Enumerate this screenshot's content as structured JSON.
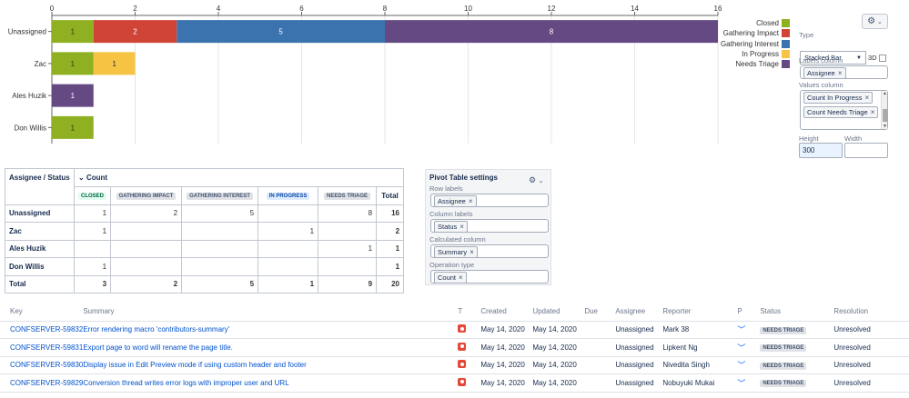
{
  "chart_data": {
    "type": "bar",
    "orientation": "horizontal",
    "stacked": true,
    "categories": [
      "Unassigned",
      "Zac",
      "Ales Huzik",
      "Don Willis"
    ],
    "series": [
      {
        "name": "Closed",
        "color": "#8eb021",
        "values": [
          1,
          1,
          0,
          1
        ]
      },
      {
        "name": "Gathering Impact",
        "color": "#d04437",
        "values": [
          2,
          0,
          0,
          0
        ]
      },
      {
        "name": "Gathering Interest",
        "color": "#3b73af",
        "values": [
          5,
          0,
          0,
          0
        ]
      },
      {
        "name": "In Progress",
        "color": "#f6c342",
        "values": [
          0,
          1,
          0,
          0
        ]
      },
      {
        "name": "Needs Triage",
        "color": "#654982",
        "values": [
          8,
          0,
          1,
          0
        ]
      }
    ],
    "xlim": [
      0,
      16
    ],
    "xticks": [
      0,
      2,
      4,
      6,
      8,
      10,
      12,
      14,
      16
    ],
    "grid": true,
    "legend": "right"
  },
  "chart_settings": {
    "gear_icon": "gear-icon",
    "type_label": "Type",
    "type_value": "Stacked Bar",
    "three_d_label": "3D",
    "labels_column_label": "Labels column",
    "labels_column_tags": [
      "Assignee"
    ],
    "values_column_label": "Values column",
    "values_column_tags": [
      "Count In Progress",
      "Count Needs Triage"
    ],
    "height_label": "Height",
    "height_value": "300",
    "width_label": "Width",
    "width_value": ""
  },
  "pivot": {
    "corner": "Assignee / Status",
    "count_header": "Count",
    "columns": [
      {
        "label": "CLOSED",
        "style": "lz-closed"
      },
      {
        "label": "GATHERING IMPACT",
        "style": "lz-grey"
      },
      {
        "label": "GATHERING INTEREST",
        "style": "lz-grey"
      },
      {
        "label": "IN PROGRESS",
        "style": "lz-blue"
      },
      {
        "label": "NEEDS TRIAGE",
        "style": "lz-grey"
      }
    ],
    "total_header": "Total",
    "rows": [
      {
        "label": "Unassigned",
        "cells": [
          "1",
          "2",
          "5",
          "",
          "8"
        ],
        "total": "16"
      },
      {
        "label": "Zac",
        "cells": [
          "1",
          "",
          "",
          "1",
          ""
        ],
        "total": "2"
      },
      {
        "label": "Ales Huzik",
        "cells": [
          "",
          "",
          "",
          "",
          "1"
        ],
        "total": "1"
      },
      {
        "label": "Don Willis",
        "cells": [
          "1",
          "",
          "",
          "",
          ""
        ],
        "total": "1"
      }
    ],
    "totals_row": {
      "label": "Total",
      "cells": [
        "3",
        "2",
        "5",
        "1",
        "9"
      ],
      "total": "20"
    }
  },
  "pivot_settings": {
    "title": "Pivot Table settings",
    "fields": [
      {
        "label": "Row labels",
        "tag": "Assignee"
      },
      {
        "label": "Column labels",
        "tag": "Status"
      },
      {
        "label": "Calculated column",
        "tag": "Summary"
      },
      {
        "label": "Operation type",
        "tag": "Count"
      }
    ]
  },
  "issues": {
    "headers": {
      "key": "Key",
      "summary": "Summary",
      "t": "T",
      "created": "Created",
      "updated": "Updated",
      "due": "Due",
      "assignee": "Assignee",
      "reporter": "Reporter",
      "p": "P",
      "status": "Status",
      "resolution": "Resolution"
    },
    "rows": [
      {
        "key": "CONFSERVER-59832",
        "summary": "Error rendering macro 'contributors-summary'",
        "created": "May 14, 2020",
        "updated": "May 14, 2020",
        "due": "",
        "assignee": "Unassigned",
        "reporter": "Mark 38",
        "status": "NEEDS TRIAGE",
        "resolution": "Unresolved"
      },
      {
        "key": "CONFSERVER-59831",
        "summary": "Export page to word will rename the page title.",
        "created": "May 14, 2020",
        "updated": "May 14, 2020",
        "due": "",
        "assignee": "Unassigned",
        "reporter": "Lipkent Ng",
        "status": "NEEDS TRIAGE",
        "resolution": "Unresolved"
      },
      {
        "key": "CONFSERVER-59830",
        "summary": "Display issue in Edit Preview mode if using custom header and footer",
        "created": "May 14, 2020",
        "updated": "May 14, 2020",
        "due": "",
        "assignee": "Unassigned",
        "reporter": "Nivedita Singh",
        "status": "NEEDS TRIAGE",
        "resolution": "Unresolved"
      },
      {
        "key": "CONFSERVER-59829",
        "summary": "Conversion thread writes error logs with improper user and URL",
        "created": "May 14, 2020",
        "updated": "May 14, 2020",
        "due": "",
        "assignee": "Unassigned",
        "reporter": "Nobuyuki Mukai",
        "status": "NEEDS TRIAGE",
        "resolution": "Unresolved"
      }
    ]
  }
}
